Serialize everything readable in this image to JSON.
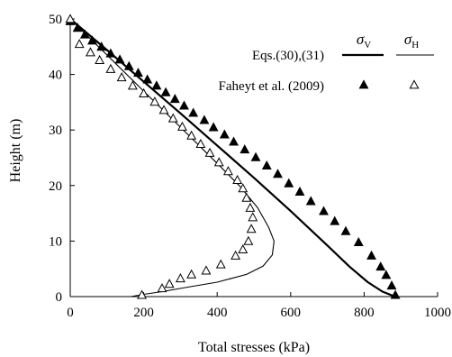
{
  "chart_data": {
    "type": "scatter",
    "xlabel": "Total stresses (kPa)",
    "ylabel": "Height (m)",
    "xlim": [
      0,
      1000
    ],
    "ylim": [
      0,
      50
    ],
    "xticks": [
      0,
      200,
      400,
      600,
      800,
      1000
    ],
    "yticks": [
      0,
      10,
      20,
      30,
      40,
      50
    ],
    "grid": false,
    "legend": {
      "placement": "top-right",
      "column_headers": [
        "σV",
        "σH"
      ],
      "rows": [
        {
          "label": "Eqs.(30),(31)",
          "kind": "line"
        },
        {
          "label": "Faheyt et al. (2009)",
          "kind": "marker"
        }
      ]
    },
    "series": [
      {
        "name": "Eqs.(30),(31) σV",
        "style": "line",
        "color": "#000000",
        "x": [
          0,
          100,
          200,
          300,
          400,
          500,
          600,
          700,
          760,
          810,
          850,
          875,
          888
        ],
        "y": [
          50,
          44.4,
          38.7,
          33.0,
          27.2,
          21.4,
          15.4,
          9.2,
          5.4,
          2.6,
          0.9,
          0.25,
          0
        ]
      },
      {
        "name": "Eqs.(30),(31) σH",
        "style": "line",
        "color": "#000000",
        "x": [
          0,
          100,
          200,
          300,
          400,
          460,
          510,
          540,
          555,
          550,
          525,
          480,
          400,
          320,
          250,
          200,
          165
        ],
        "y": [
          50,
          43.5,
          37.0,
          30.5,
          24.0,
          20.0,
          16.0,
          12.5,
          10.0,
          7.5,
          5.5,
          4.0,
          2.6,
          1.7,
          0.9,
          0.4,
          0
        ]
      },
      {
        "name": "Faheyt et al. (2009) σV",
        "style": "filled-triangle",
        "color": "#000000",
        "x": [
          0,
          20,
          40,
          60,
          85,
          110,
          135,
          160,
          185,
          210,
          235,
          260,
          285,
          310,
          335,
          365,
          390,
          420,
          445,
          475,
          505,
          535,
          565,
          595,
          625,
          655,
          690,
          720,
          750,
          785,
          820,
          845,
          860,
          875,
          885
        ],
        "y": [
          49.6,
          48.4,
          47.2,
          46.1,
          45.0,
          43.8,
          42.7,
          41.5,
          40.3,
          39.1,
          38.0,
          36.8,
          35.6,
          34.4,
          33.1,
          31.8,
          30.5,
          29.2,
          27.9,
          26.5,
          25.1,
          23.6,
          22.1,
          20.4,
          18.9,
          17.2,
          15.4,
          13.6,
          11.8,
          9.8,
          7.4,
          5.4,
          3.9,
          2.0,
          0.3
        ]
      },
      {
        "name": "Faheyt et al. (2009) σH",
        "style": "hollow-triangle",
        "color": "#000000",
        "x": [
          0,
          25,
          55,
          80,
          110,
          140,
          170,
          200,
          230,
          255,
          280,
          305,
          330,
          355,
          380,
          405,
          430,
          455,
          470,
          480,
          490,
          497,
          493,
          485,
          470,
          450,
          410,
          370,
          330,
          300,
          270,
          250,
          195
        ],
        "y": [
          50,
          45.5,
          44.0,
          42.6,
          41.0,
          39.5,
          38.0,
          36.6,
          35.1,
          33.6,
          32.1,
          30.6,
          29.0,
          27.5,
          25.9,
          24.2,
          22.6,
          21.0,
          19.5,
          17.8,
          16.0,
          14.3,
          12.2,
          10.0,
          8.5,
          7.4,
          5.8,
          4.7,
          4.0,
          3.3,
          2.3,
          1.5,
          0.3
        ]
      }
    ]
  }
}
